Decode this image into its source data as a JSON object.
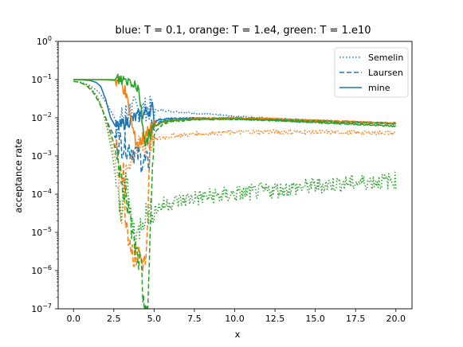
{
  "chart_data": {
    "type": "line",
    "title": "blue: T = 0.1, orange: T = 1.e4, green: T = 1.e10",
    "xlabel": "x",
    "ylabel": "acceptance rate",
    "xlim": [
      -0.95,
      21
    ],
    "ylim": [
      1e-07,
      1
    ],
    "yscale": "log",
    "grid": false,
    "legend_position": "top-right",
    "x_ticks": [
      0.0,
      2.5,
      5.0,
      7.5,
      10.0,
      12.5,
      15.0,
      17.5,
      20.0
    ],
    "x_tick_labels": [
      "0.0",
      "2.5",
      "5.0",
      "7.5",
      "10.0",
      "12.5",
      "15.0",
      "17.5",
      "20.0"
    ],
    "y_ticks": [
      {
        "value": 1,
        "base": "10",
        "exp": "0"
      },
      {
        "value": 0.1,
        "base": "10",
        "exp": "−1"
      },
      {
        "value": 0.01,
        "base": "10",
        "exp": "−2"
      },
      {
        "value": 0.001,
        "base": "10",
        "exp": "−3"
      },
      {
        "value": 0.0001,
        "base": "10",
        "exp": "−4"
      },
      {
        "value": 1e-05,
        "base": "10",
        "exp": "−5"
      },
      {
        "value": 1e-06,
        "base": "10",
        "exp": "−6"
      },
      {
        "value": 1e-07,
        "base": "10",
        "exp": "−7"
      }
    ],
    "legend": [
      {
        "label": "Semelin",
        "style": "dotted"
      },
      {
        "label": "Laursen",
        "style": "dashed"
      },
      {
        "label": "mine",
        "style": "solid"
      }
    ],
    "colors": {
      "blue": "#1f77b4",
      "orange": "#ff7f0e",
      "green": "#2ca02c"
    },
    "series": [
      {
        "color": "blue",
        "style": "dotted",
        "x": [
          0,
          0.5,
          1.0,
          1.5,
          1.8,
          2.1,
          2.4,
          2.6,
          2.8,
          3.0,
          3.2,
          3.5,
          4.0,
          4.5,
          5.0,
          6.0,
          7.5,
          10,
          12.5,
          15,
          17.5,
          20
        ],
        "y": [
          0.09,
          0.085,
          0.07,
          0.05,
          0.035,
          0.022,
          0.013,
          0.009,
          0.007,
          0.009,
          0.012,
          0.016,
          0.017,
          0.017,
          0.016,
          0.015,
          0.013,
          0.011,
          0.0095,
          0.0085,
          0.0078,
          0.007
        ]
      },
      {
        "color": "blue",
        "style": "dashed",
        "x": [
          0,
          0.4,
          0.8,
          1.2,
          1.6,
          2.0,
          2.3,
          2.6,
          2.8,
          3.0,
          3.3,
          3.6,
          3.9,
          4.2,
          4.4,
          4.6,
          4.7,
          4.8,
          5.0,
          5.5,
          6.0,
          7.5,
          10,
          12.5,
          15,
          17.5,
          20
        ],
        "y": [
          0.09,
          0.085,
          0.07,
          0.048,
          0.025,
          0.01,
          0.005,
          0.003,
          0.0025,
          0.002,
          0.0018,
          0.0015,
          0.0012,
          0.0008,
          0.0007,
          0.0006,
          0.0007,
          0.005,
          0.007,
          0.008,
          0.009,
          0.0095,
          0.0095,
          0.009,
          0.0085,
          0.0078,
          0.007
        ]
      },
      {
        "color": "blue",
        "style": "solid",
        "x": [
          0,
          0.5,
          1.0,
          1.4,
          1.7,
          2.0,
          2.3,
          2.6,
          2.9,
          3.2,
          3.6,
          4.0,
          4.5,
          4.9,
          5.0,
          5.3,
          6.0,
          7.5,
          10,
          12.5,
          15,
          17.5,
          20
        ],
        "y": [
          0.1,
          0.098,
          0.095,
          0.085,
          0.065,
          0.03,
          0.01,
          0.006,
          0.006,
          0.0075,
          0.009,
          0.011,
          0.014,
          0.018,
          0.008,
          0.009,
          0.0095,
          0.0098,
          0.0097,
          0.009,
          0.0083,
          0.0077,
          0.0072
        ]
      },
      {
        "color": "orange",
        "style": "dotted",
        "x": [
          0,
          0.5,
          1.0,
          1.5,
          1.8,
          2.1,
          2.4,
          2.6,
          2.8,
          2.9,
          3.0,
          3.1,
          3.3,
          3.5,
          3.7,
          4.0,
          4.3,
          4.6,
          5.0,
          5.5,
          6.0,
          7.5,
          10,
          12.5,
          15,
          17.5,
          20
        ],
        "y": [
          0.09,
          0.085,
          0.065,
          0.035,
          0.018,
          0.006,
          0.002,
          0.0008,
          0.0002,
          5e-05,
          2e-05,
          0.0001,
          0.0004,
          0.0008,
          0.0012,
          0.0015,
          0.0018,
          0.0022,
          0.0026,
          0.003,
          0.0033,
          0.0038,
          0.0042,
          0.0043,
          0.0042,
          0.0041,
          0.004
        ]
      },
      {
        "color": "orange",
        "style": "dashed",
        "x": [
          0,
          0.4,
          0.8,
          1.2,
          1.6,
          2.0,
          2.3,
          2.6,
          2.8,
          3.0,
          3.1,
          3.2,
          3.4,
          3.6,
          3.8,
          4.0,
          4.2,
          4.4,
          4.5,
          4.6,
          4.7,
          4.8,
          5.0,
          5.5,
          6.0,
          7.5,
          10,
          12.5,
          15,
          17.5,
          20
        ],
        "y": [
          0.09,
          0.085,
          0.07,
          0.048,
          0.025,
          0.01,
          0.004,
          0.0015,
          0.0008,
          0.0003,
          0.0004,
          4e-05,
          1e-05,
          4e-06,
          2e-06,
          3e-06,
          2e-06,
          1.5e-06,
          2e-06,
          1e-05,
          0.0004,
          0.003,
          0.006,
          0.0075,
          0.0085,
          0.0093,
          0.0095,
          0.009,
          0.0085,
          0.0078,
          0.0072
        ]
      },
      {
        "color": "orange",
        "style": "solid",
        "x": [
          0,
          0.5,
          1.0,
          1.5,
          2.0,
          2.5,
          2.8,
          3.0,
          3.2,
          3.4,
          3.6,
          3.8,
          4.0,
          4.2,
          4.5,
          5.0,
          5.5,
          6.0,
          7.5,
          10,
          12.5,
          15,
          17.5,
          20
        ],
        "y": [
          0.1,
          0.1,
          0.1,
          0.1,
          0.098,
          0.095,
          0.09,
          0.08,
          0.05,
          0.02,
          0.007,
          0.003,
          0.002,
          0.0025,
          0.004,
          0.006,
          0.0075,
          0.0085,
          0.0095,
          0.01,
          0.0095,
          0.0085,
          0.0078,
          0.007
        ]
      },
      {
        "color": "green",
        "style": "dotted",
        "x": [
          0,
          0.5,
          1.0,
          1.5,
          1.8,
          2.1,
          2.4,
          2.6,
          2.8,
          3.0,
          3.1,
          3.2,
          3.4,
          3.6,
          3.8,
          4.0,
          4.2,
          4.5,
          5.0,
          5.5,
          6.0,
          7.5,
          10,
          12.5,
          15,
          17.5,
          20
        ],
        "y": [
          0.09,
          0.085,
          0.065,
          0.035,
          0.016,
          0.005,
          0.0012,
          0.0003,
          6e-05,
          2e-05,
          0.0002,
          0.0004,
          8e-05,
          2e-05,
          1e-05,
          8e-06,
          2e-05,
          3e-05,
          4e-05,
          5e-05,
          6e-05,
          8e-05,
          0.0001,
          0.00013,
          0.00017,
          0.0002,
          0.00023
        ]
      },
      {
        "color": "green",
        "style": "dashed",
        "x": [
          0,
          0.4,
          0.8,
          1.2,
          1.6,
          2.0,
          2.3,
          2.6,
          2.8,
          3.0,
          3.2,
          3.4,
          3.6,
          3.8,
          4.0,
          4.2,
          4.3,
          4.4,
          4.5,
          4.6,
          4.7,
          4.8,
          4.9,
          5.0,
          5.5,
          6.0,
          7.5,
          10,
          12.5,
          15,
          17.5,
          20
        ],
        "y": [
          0.09,
          0.085,
          0.07,
          0.048,
          0.025,
          0.01,
          0.004,
          0.0015,
          0.0007,
          0.0003,
          0.0001,
          4e-05,
          1e-05,
          4e-06,
          2e-06,
          1.2e-06,
          1e-07,
          1e-07,
          2e-07,
          1e-07,
          1e-06,
          2e-05,
          0.0005,
          0.004,
          0.0065,
          0.008,
          0.009,
          0.0093,
          0.009,
          0.0083,
          0.0075,
          0.007
        ]
      },
      {
        "color": "green",
        "style": "solid",
        "x": [
          0,
          0.5,
          1.0,
          1.5,
          2.0,
          2.5,
          3.0,
          3.3,
          3.6,
          3.8,
          4.0,
          4.1,
          4.2,
          4.3,
          4.4,
          4.5,
          4.6,
          4.8,
          5.0,
          5.5,
          6.0,
          7.5,
          10,
          12.5,
          15,
          17.5,
          20
        ],
        "y": [
          0.1,
          0.1,
          0.1,
          0.1,
          0.1,
          0.099,
          0.098,
          0.096,
          0.09,
          0.08,
          0.06,
          0.04,
          0.015,
          0.006,
          0.003,
          0.0025,
          0.003,
          0.0045,
          0.006,
          0.0075,
          0.0085,
          0.0092,
          0.0093,
          0.0085,
          0.0075,
          0.0068,
          0.006
        ]
      }
    ]
  }
}
